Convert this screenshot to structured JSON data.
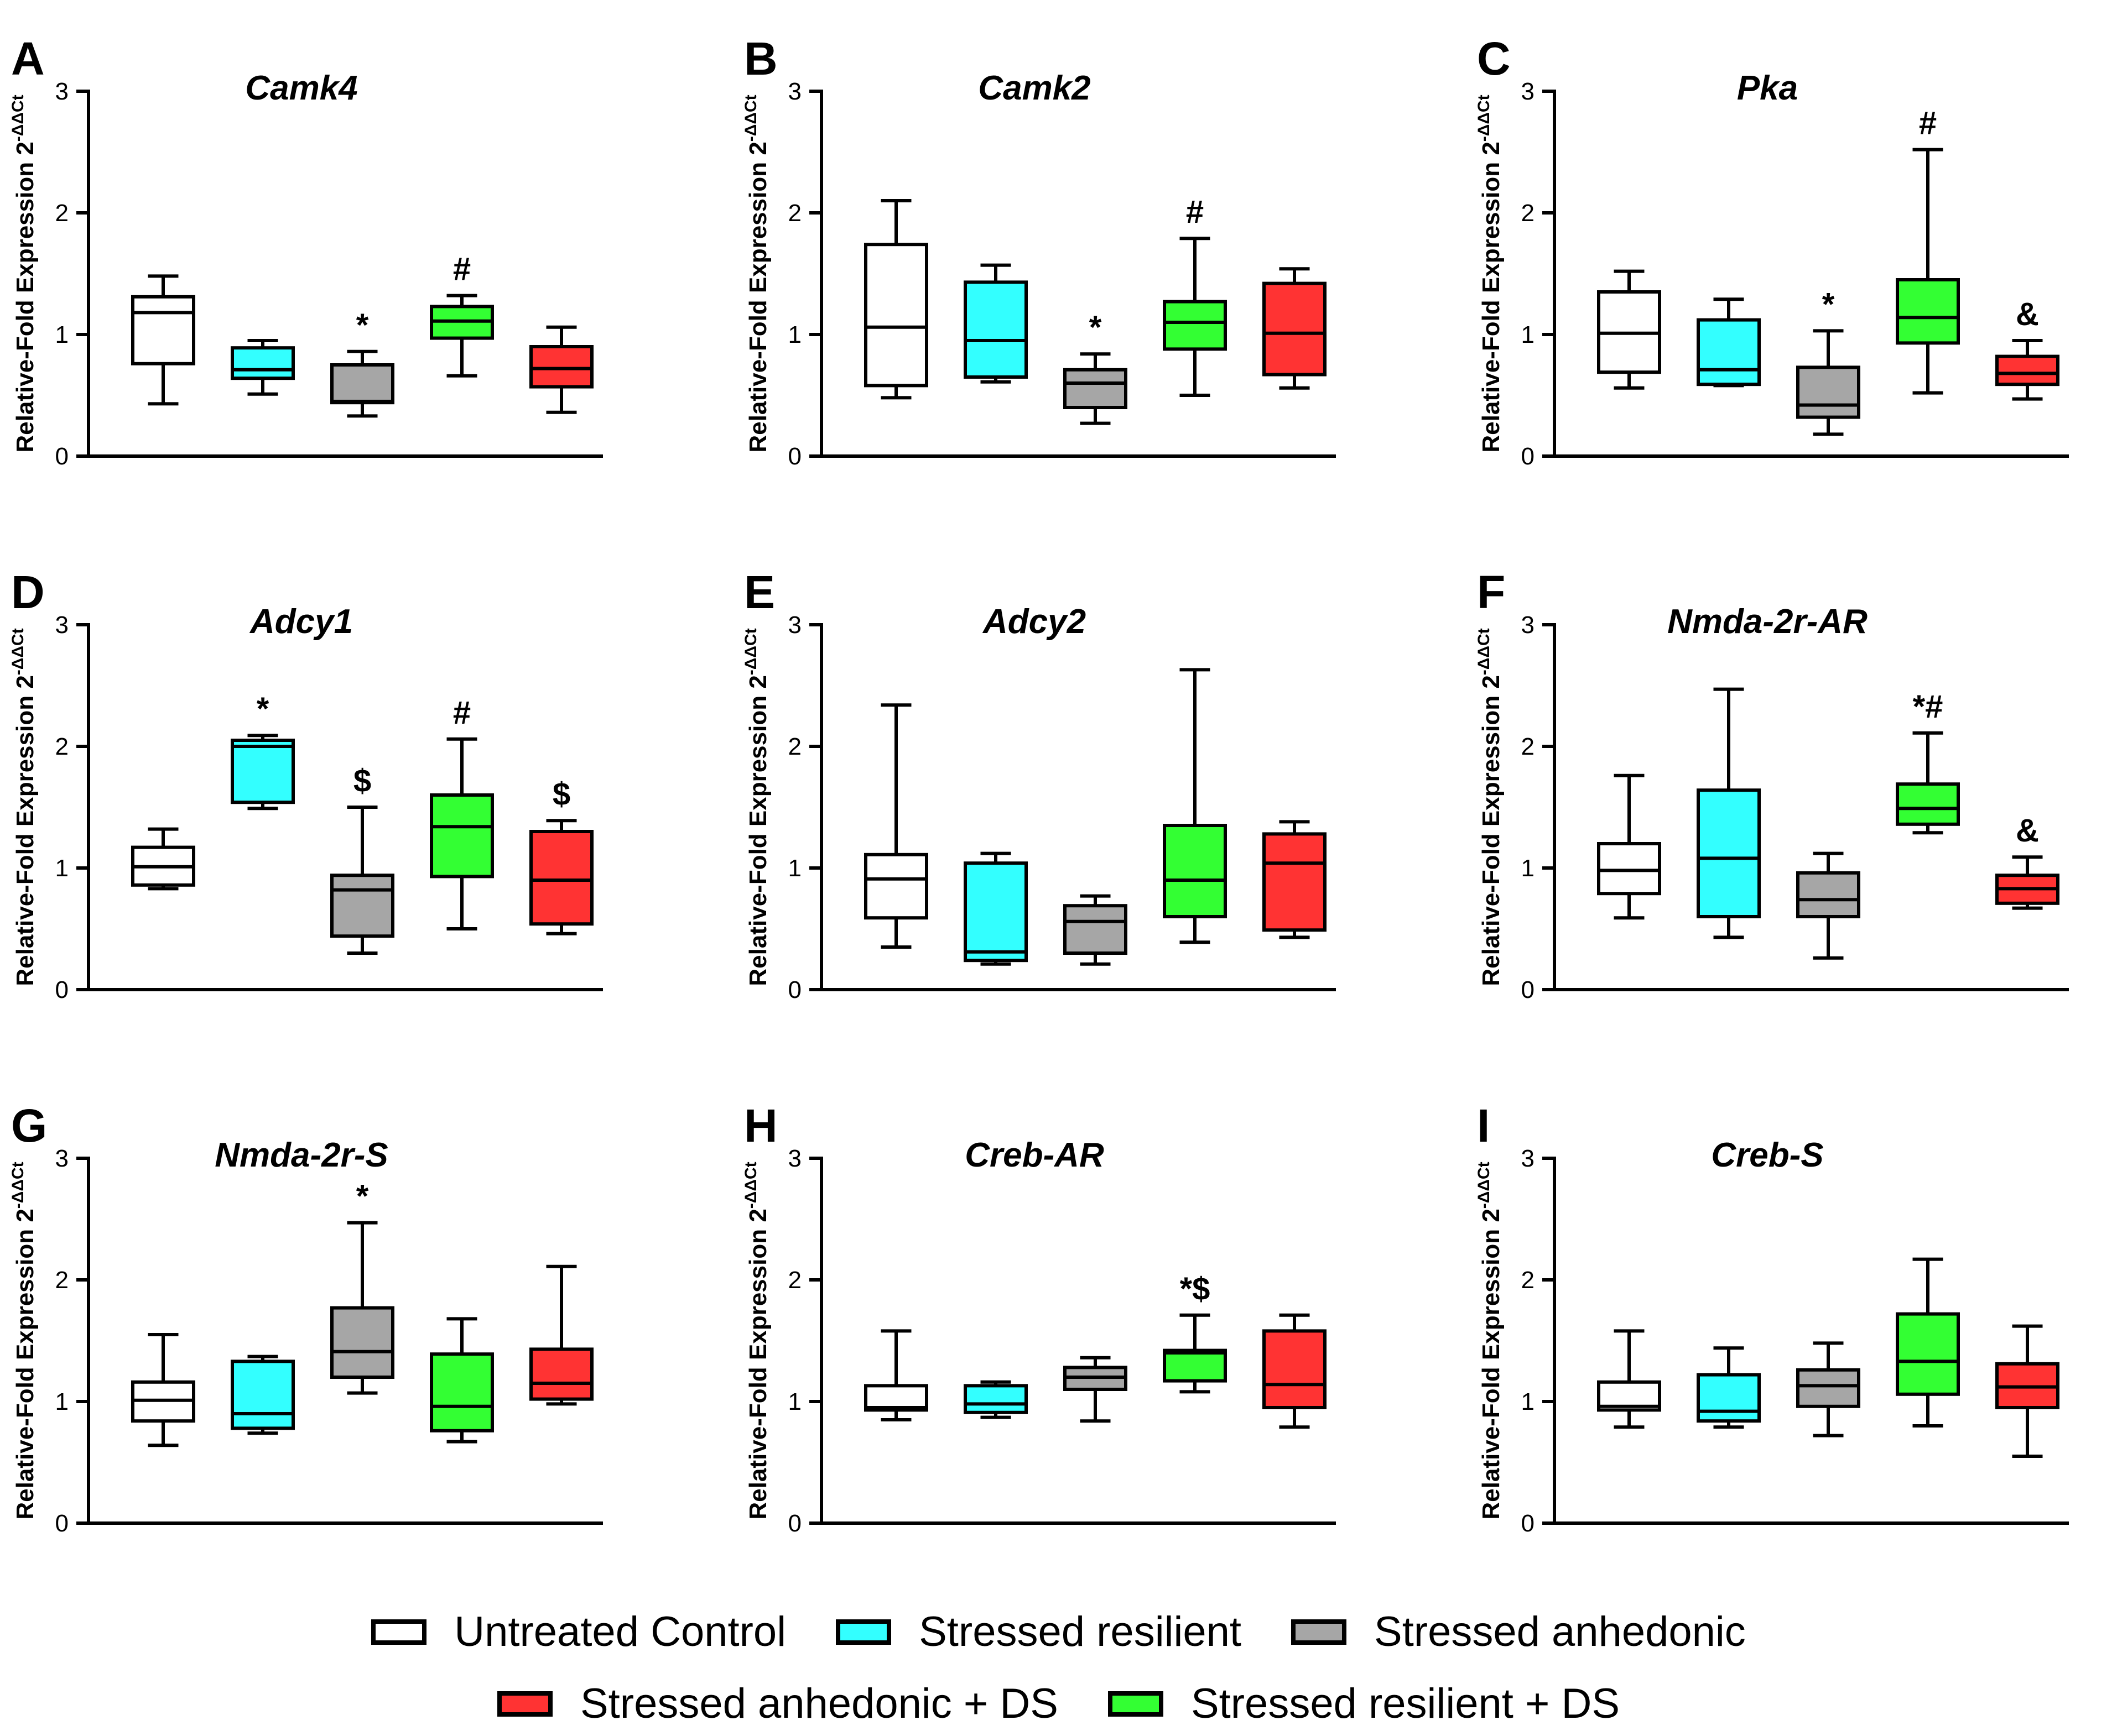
{
  "groups": [
    {
      "name": "Untreated Control",
      "color": "#ffffff"
    },
    {
      "name": "Stressed resilient",
      "color": "#33ffff"
    },
    {
      "name": "Stressed anhedonic",
      "color": "#a6a6a6"
    },
    {
      "name": "Stressed resilient + DS",
      "color": "#33ff33"
    },
    {
      "name": "Stressed anhedonic + DS",
      "color": "#ff3333"
    }
  ],
  "legend_rows": [
    [
      "Untreated Control",
      "Stressed resilient",
      "Stressed anhedonic"
    ],
    [
      "Stressed anhedonic + DS",
      "Stressed resilient + DS"
    ]
  ],
  "chart_data": [
    {
      "type": "box",
      "panel": "A",
      "title": "Camk4",
      "ylabel": "Relative-Fold Expression 2^-ΔΔCt",
      "ylim": [
        0,
        3
      ],
      "yticks": [
        "0",
        "1",
        "2",
        "3"
      ],
      "boxes": [
        {
          "group": "Untreated Control",
          "min": 0.43,
          "q1": 0.76,
          "median": 1.18,
          "q3": 1.31,
          "max": 1.48,
          "annotation": ""
        },
        {
          "group": "Stressed resilient",
          "min": 0.51,
          "q1": 0.64,
          "median": 0.71,
          "q3": 0.89,
          "max": 0.95,
          "annotation": ""
        },
        {
          "group": "Stressed anhedonic",
          "min": 0.33,
          "q1": 0.44,
          "median": 0.45,
          "q3": 0.75,
          "max": 0.86,
          "annotation": "*"
        },
        {
          "group": "Stressed resilient + DS",
          "min": 0.66,
          "q1": 0.97,
          "median": 1.11,
          "q3": 1.23,
          "max": 1.32,
          "annotation": "#"
        },
        {
          "group": "Stressed anhedonic + DS",
          "min": 0.36,
          "q1": 0.57,
          "median": 0.72,
          "q3": 0.9,
          "max": 1.06,
          "annotation": ""
        }
      ]
    },
    {
      "type": "box",
      "panel": "B",
      "title": "Camk2",
      "ylabel": "Relative-Fold Expression 2^-ΔΔCt",
      "ylim": [
        0,
        3
      ],
      "yticks": [
        "0",
        "1",
        "2",
        "3"
      ],
      "boxes": [
        {
          "group": "Untreated Control",
          "min": 0.48,
          "q1": 0.58,
          "median": 1.06,
          "q3": 1.74,
          "max": 2.1,
          "annotation": ""
        },
        {
          "group": "Stressed resilient",
          "min": 0.61,
          "q1": 0.65,
          "median": 0.95,
          "q3": 1.43,
          "max": 1.57,
          "annotation": ""
        },
        {
          "group": "Stressed anhedonic",
          "min": 0.27,
          "q1": 0.4,
          "median": 0.6,
          "q3": 0.71,
          "max": 0.84,
          "annotation": "*"
        },
        {
          "group": "Stressed resilient + DS",
          "min": 0.5,
          "q1": 0.88,
          "median": 1.1,
          "q3": 1.27,
          "max": 1.79,
          "annotation": "#"
        },
        {
          "group": "Stressed anhedonic + DS",
          "min": 0.56,
          "q1": 0.67,
          "median": 1.01,
          "q3": 1.42,
          "max": 1.54,
          "annotation": ""
        }
      ]
    },
    {
      "type": "box",
      "panel": "C",
      "title": "Pka",
      "ylabel": "Relative-Fold Expression 2^-ΔΔCt",
      "ylim": [
        0,
        3
      ],
      "yticks": [
        "0",
        "1",
        "2",
        "3"
      ],
      "boxes": [
        {
          "group": "Untreated Control",
          "min": 0.56,
          "q1": 0.69,
          "median": 1.01,
          "q3": 1.35,
          "max": 1.52,
          "annotation": ""
        },
        {
          "group": "Stressed resilient",
          "min": 0.58,
          "q1": 0.59,
          "median": 0.71,
          "q3": 1.12,
          "max": 1.29,
          "annotation": ""
        },
        {
          "group": "Stressed anhedonic",
          "min": 0.18,
          "q1": 0.32,
          "median": 0.42,
          "q3": 0.73,
          "max": 1.03,
          "annotation": "*"
        },
        {
          "group": "Stressed resilient + DS",
          "min": 0.52,
          "q1": 0.93,
          "median": 1.14,
          "q3": 1.45,
          "max": 2.52,
          "annotation": "#"
        },
        {
          "group": "Stressed anhedonic + DS",
          "min": 0.47,
          "q1": 0.59,
          "median": 0.68,
          "q3": 0.82,
          "max": 0.95,
          "annotation": "&"
        }
      ]
    },
    {
      "type": "box",
      "panel": "D",
      "title": "Adcy1",
      "ylabel": "Relative-Fold Expression 2^-ΔΔCt",
      "ylim": [
        0,
        3
      ],
      "yticks": [
        "0",
        "1",
        "2",
        "3"
      ],
      "boxes": [
        {
          "group": "Untreated Control",
          "min": 0.83,
          "q1": 0.86,
          "median": 1.01,
          "q3": 1.17,
          "max": 1.32,
          "annotation": ""
        },
        {
          "group": "Stressed resilient",
          "min": 1.49,
          "q1": 1.54,
          "median": 2.0,
          "q3": 2.05,
          "max": 2.09,
          "annotation": "*"
        },
        {
          "group": "Stressed anhedonic",
          "min": 0.3,
          "q1": 0.44,
          "median": 0.82,
          "q3": 0.94,
          "max": 1.5,
          "annotation": "$"
        },
        {
          "group": "Stressed resilient + DS",
          "min": 0.5,
          "q1": 0.93,
          "median": 1.34,
          "q3": 1.6,
          "max": 2.06,
          "annotation": "#"
        },
        {
          "group": "Stressed anhedonic + DS",
          "min": 0.46,
          "q1": 0.54,
          "median": 0.9,
          "q3": 1.3,
          "max": 1.39,
          "annotation": "$"
        }
      ]
    },
    {
      "type": "box",
      "panel": "E",
      "title": "Adcy2",
      "ylabel": "Relative-Fold Expression 2^-ΔΔCt",
      "ylim": [
        0,
        3
      ],
      "yticks": [
        "0",
        "1",
        "2",
        "3"
      ],
      "boxes": [
        {
          "group": "Untreated Control",
          "min": 0.35,
          "q1": 0.59,
          "median": 0.91,
          "q3": 1.11,
          "max": 2.34,
          "annotation": ""
        },
        {
          "group": "Stressed resilient",
          "min": 0.21,
          "q1": 0.24,
          "median": 0.31,
          "q3": 1.04,
          "max": 1.12,
          "annotation": ""
        },
        {
          "group": "Stressed anhedonic",
          "min": 0.21,
          "q1": 0.3,
          "median": 0.56,
          "q3": 0.69,
          "max": 0.77,
          "annotation": ""
        },
        {
          "group": "Stressed resilient + DS",
          "min": 0.39,
          "q1": 0.6,
          "median": 0.9,
          "q3": 1.35,
          "max": 2.63,
          "annotation": ""
        },
        {
          "group": "Stressed anhedonic + DS",
          "min": 0.43,
          "q1": 0.49,
          "median": 1.04,
          "q3": 1.28,
          "max": 1.38,
          "annotation": ""
        }
      ]
    },
    {
      "type": "box",
      "panel": "F",
      "title": "Nmda-2r-AR",
      "ylabel": "Relative-Fold Expression 2^-ΔΔCt",
      "ylim": [
        0,
        3
      ],
      "yticks": [
        "0",
        "1",
        "2",
        "3"
      ],
      "boxes": [
        {
          "group": "Untreated Control",
          "min": 0.59,
          "q1": 0.79,
          "median": 0.98,
          "q3": 1.2,
          "max": 1.76,
          "annotation": ""
        },
        {
          "group": "Stressed resilient",
          "min": 0.43,
          "q1": 0.6,
          "median": 1.08,
          "q3": 1.64,
          "max": 2.47,
          "annotation": ""
        },
        {
          "group": "Stressed anhedonic",
          "min": 0.26,
          "q1": 0.6,
          "median": 0.74,
          "q3": 0.96,
          "max": 1.12,
          "annotation": ""
        },
        {
          "group": "Stressed resilient + DS",
          "min": 1.29,
          "q1": 1.36,
          "median": 1.49,
          "q3": 1.69,
          "max": 2.11,
          "annotation": "*#"
        },
        {
          "group": "Stressed anhedonic + DS",
          "min": 0.67,
          "q1": 0.71,
          "median": 0.83,
          "q3": 0.94,
          "max": 1.09,
          "annotation": "&"
        }
      ]
    },
    {
      "type": "box",
      "panel": "G",
      "title": "Nmda-2r-S",
      "ylabel": "Relative-Fold Expression 2^-ΔΔCt",
      "ylim": [
        0,
        3
      ],
      "yticks": [
        "0",
        "1",
        "2",
        "3"
      ],
      "boxes": [
        {
          "group": "Untreated Control",
          "min": 0.64,
          "q1": 0.84,
          "median": 1.01,
          "q3": 1.16,
          "max": 1.55,
          "annotation": ""
        },
        {
          "group": "Stressed resilient",
          "min": 0.74,
          "q1": 0.78,
          "median": 0.9,
          "q3": 1.33,
          "max": 1.37,
          "annotation": ""
        },
        {
          "group": "Stressed anhedonic",
          "min": 1.07,
          "q1": 1.2,
          "median": 1.41,
          "q3": 1.77,
          "max": 2.47,
          "annotation": "*"
        },
        {
          "group": "Stressed resilient + DS",
          "min": 0.67,
          "q1": 0.76,
          "median": 0.96,
          "q3": 1.39,
          "max": 1.68,
          "annotation": ""
        },
        {
          "group": "Stressed anhedonic + DS",
          "min": 0.98,
          "q1": 1.02,
          "median": 1.15,
          "q3": 1.43,
          "max": 2.11,
          "annotation": ""
        }
      ]
    },
    {
      "type": "box",
      "panel": "H",
      "title": "Creb-AR",
      "ylabel": "Relative-Fold Expression 2^-ΔΔCt",
      "ylim": [
        0,
        3
      ],
      "yticks": [
        "0",
        "1",
        "2",
        "3"
      ],
      "boxes": [
        {
          "group": "Untreated Control",
          "min": 0.85,
          "q1": 0.93,
          "median": 0.95,
          "q3": 1.13,
          "max": 1.58,
          "annotation": ""
        },
        {
          "group": "Stressed resilient",
          "min": 0.87,
          "q1": 0.91,
          "median": 0.98,
          "q3": 1.13,
          "max": 1.16,
          "annotation": ""
        },
        {
          "group": "Stressed anhedonic",
          "min": 0.84,
          "q1": 1.1,
          "median": 1.2,
          "q3": 1.28,
          "max": 1.36,
          "annotation": ""
        },
        {
          "group": "Stressed resilient + DS",
          "min": 1.08,
          "q1": 1.17,
          "median": 1.4,
          "q3": 1.42,
          "max": 1.71,
          "annotation": "*$"
        },
        {
          "group": "Stressed anhedonic + DS",
          "min": 0.79,
          "q1": 0.95,
          "median": 1.14,
          "q3": 1.58,
          "max": 1.71,
          "annotation": ""
        }
      ]
    },
    {
      "type": "box",
      "panel": "I",
      "title": "Creb-S",
      "ylabel": "Relative-Fold Expression 2^-ΔΔCt",
      "ylim": [
        0,
        3
      ],
      "yticks": [
        "0",
        "1",
        "2",
        "3"
      ],
      "boxes": [
        {
          "group": "Untreated Control",
          "min": 0.79,
          "q1": 0.93,
          "median": 0.96,
          "q3": 1.16,
          "max": 1.58,
          "annotation": ""
        },
        {
          "group": "Stressed resilient",
          "min": 0.79,
          "q1": 0.84,
          "median": 0.92,
          "q3": 1.22,
          "max": 1.44,
          "annotation": ""
        },
        {
          "group": "Stressed anhedonic",
          "min": 0.72,
          "q1": 0.96,
          "median": 1.13,
          "q3": 1.26,
          "max": 1.48,
          "annotation": ""
        },
        {
          "group": "Stressed resilient + DS",
          "min": 0.8,
          "q1": 1.06,
          "median": 1.33,
          "q3": 1.72,
          "max": 2.17,
          "annotation": ""
        },
        {
          "group": "Stressed anhedonic + DS",
          "min": 0.55,
          "q1": 0.95,
          "median": 1.12,
          "q3": 1.31,
          "max": 1.62,
          "annotation": ""
        }
      ]
    }
  ]
}
